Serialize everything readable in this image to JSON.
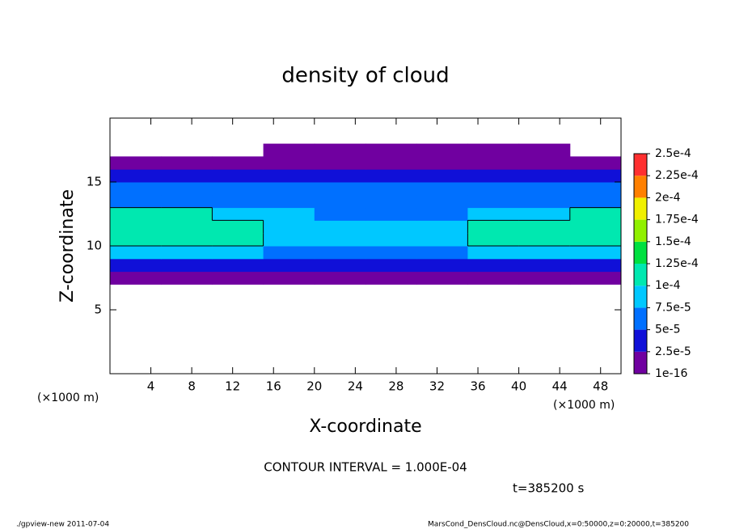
{
  "chart_data": {
    "type": "heatmap",
    "title": "density of cloud",
    "xlabel": "X-coordinate",
    "ylabel": "Z-coordinate",
    "x_unit": "(×1000 m)",
    "xlim": [
      0,
      50
    ],
    "ylim": [
      0,
      20
    ],
    "xticks": [
      4,
      8,
      12,
      16,
      20,
      24,
      28,
      32,
      36,
      40,
      44,
      48
    ],
    "yticks": [
      5,
      10,
      15
    ],
    "x": [
      2.5,
      7.5,
      12.5,
      17.5,
      22.5,
      27.5,
      32.5,
      37.5,
      42.5,
      47.5
    ],
    "y": [
      7.5,
      8.5,
      9.5,
      10.5,
      11.5,
      12.5,
      13.5,
      14.5,
      15.5,
      16.5,
      17.5
    ],
    "values": [
      [
        1e-05,
        1e-05,
        1e-05,
        1e-05,
        1e-05,
        1e-05,
        1e-05,
        1e-05,
        1e-05,
        1e-05
      ],
      [
        3e-05,
        3e-05,
        3e-05,
        3e-05,
        3e-05,
        3e-05,
        3e-05,
        3e-05,
        3e-05,
        3e-05
      ],
      [
        9e-05,
        9e-05,
        8e-05,
        7e-05,
        7e-05,
        7e-05,
        7e-05,
        8e-05,
        9e-05,
        9e-05
      ],
      [
        0.00011,
        0.000115,
        0.000105,
        8e-05,
        8e-05,
        8.5e-05,
        9e-05,
        0.000105,
        0.00011,
        0.00011
      ],
      [
        0.000115,
        0.00012,
        0.00011,
        9e-05,
        8e-05,
        8e-05,
        9e-05,
        0.000105,
        0.000115,
        0.000115
      ],
      [
        0.000105,
        0.000105,
        9e-05,
        8e-05,
        7e-05,
        6.5e-05,
        7e-05,
        8e-05,
        9e-05,
        0.000102
      ],
      [
        7e-05,
        7e-05,
        6.5e-05,
        6e-05,
        6e-05,
        5.5e-05,
        5.5e-05,
        6e-05,
        6.5e-05,
        7e-05
      ],
      [
        5.5e-05,
        5.5e-05,
        5e-05,
        5e-05,
        5e-05,
        5e-05,
        5e-05,
        5e-05,
        5e-05,
        5.5e-05
      ],
      [
        3.5e-05,
        3.5e-05,
        3.5e-05,
        3.5e-05,
        3.5e-05,
        3.5e-05,
        3.5e-05,
        3.5e-05,
        3.5e-05,
        3.5e-05
      ],
      [
        1.5e-05,
        1.5e-05,
        1.5e-05,
        1.5e-05,
        1.5e-05,
        1.5e-05,
        1.5e-05,
        1.5e-05,
        1.5e-05,
        1.5e-05
      ],
      [
        null,
        null,
        null,
        5e-06,
        5e-06,
        5e-06,
        5e-06,
        5e-06,
        5e-06,
        null
      ]
    ],
    "contour_level": 0.0001,
    "colorbar": {
      "levels": [
        1e-16,
        {
          "value": 2.5e-05,
          "label": "2.5e-5"
        },
        {
          "value": 5e-05,
          "label": "5e-5"
        },
        {
          "value": 7.5e-05,
          "label": "7.5e-5"
        },
        {
          "value": 0.0001,
          "label": "1e-4"
        },
        {
          "value": 0.000125,
          "label": "1.25e-4"
        },
        {
          "value": 0.00015,
          "label": "1.5e-4"
        },
        {
          "value": 0.000175,
          "label": "1.75e-4"
        },
        {
          "value": 0.0002,
          "label": "2e-4"
        },
        {
          "value": 0.000225,
          "label": "2.25e-4"
        },
        {
          "value": 0.00025,
          "label": "2.5e-4"
        }
      ],
      "colors": [
        "#7000a0",
        "#1010d8",
        "#0070ff",
        "#00c8ff",
        "#00e8b0",
        "#00e040",
        "#90f000",
        "#f0f000",
        "#ff8000",
        "#ff3030"
      ]
    },
    "annotations": [
      "CONTOUR INTERVAL = 1.000E-04",
      "t=385200 s"
    ],
    "footer_left": "./gpview-new  2011-07-04",
    "footer_right": "MarsCond_DensCloud.nc@DensCloud,x=0:50000,z=0:20000,t=385200"
  }
}
